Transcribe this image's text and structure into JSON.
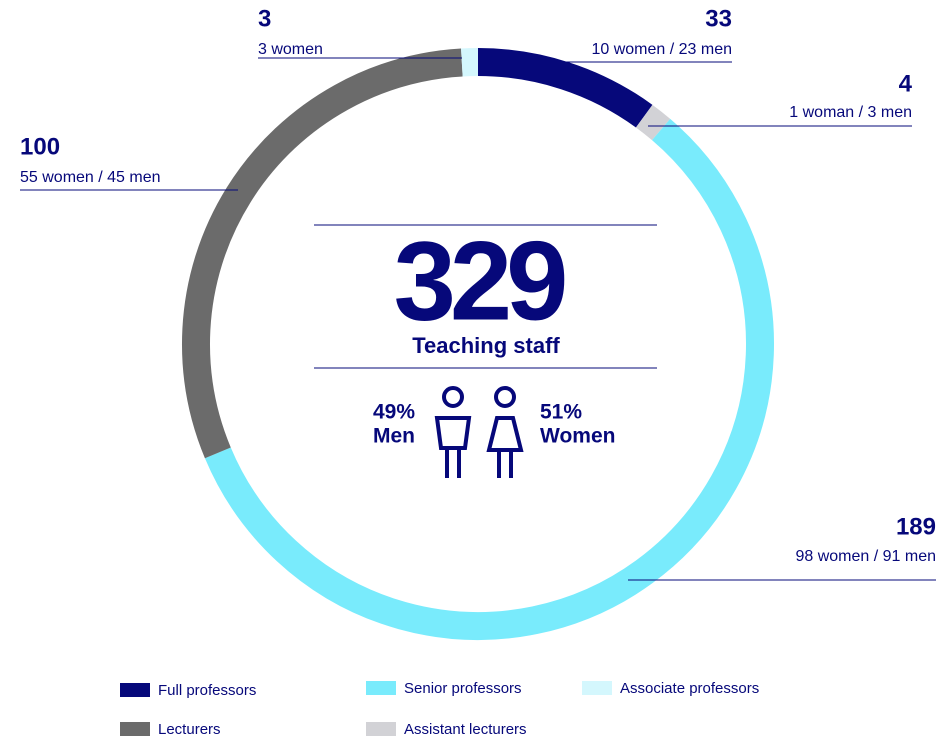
{
  "chart_data": {
    "type": "donut",
    "categories": [
      "Full professors",
      "Assistant lecturers",
      "Senior professors",
      "Lecturers",
      "Associate professors"
    ],
    "values": [
      33,
      4,
      189,
      100,
      3
    ],
    "details": [
      "10 women / 23 men",
      "1 woman / 3 men",
      "98 women / 91 men",
      "55 women / 45 men",
      "3 women"
    ],
    "colors": [
      "#06087a",
      "#d2d2d6",
      "#79ebfc",
      "#6b6b6b",
      "#d4f7fd"
    ],
    "center_value": 329,
    "center_label": "Teaching staff",
    "gender": {
      "labels": [
        "Men",
        "Women"
      ],
      "values": [
        49,
        51
      ],
      "value_labels": [
        "49%",
        "51%"
      ]
    }
  }
}
